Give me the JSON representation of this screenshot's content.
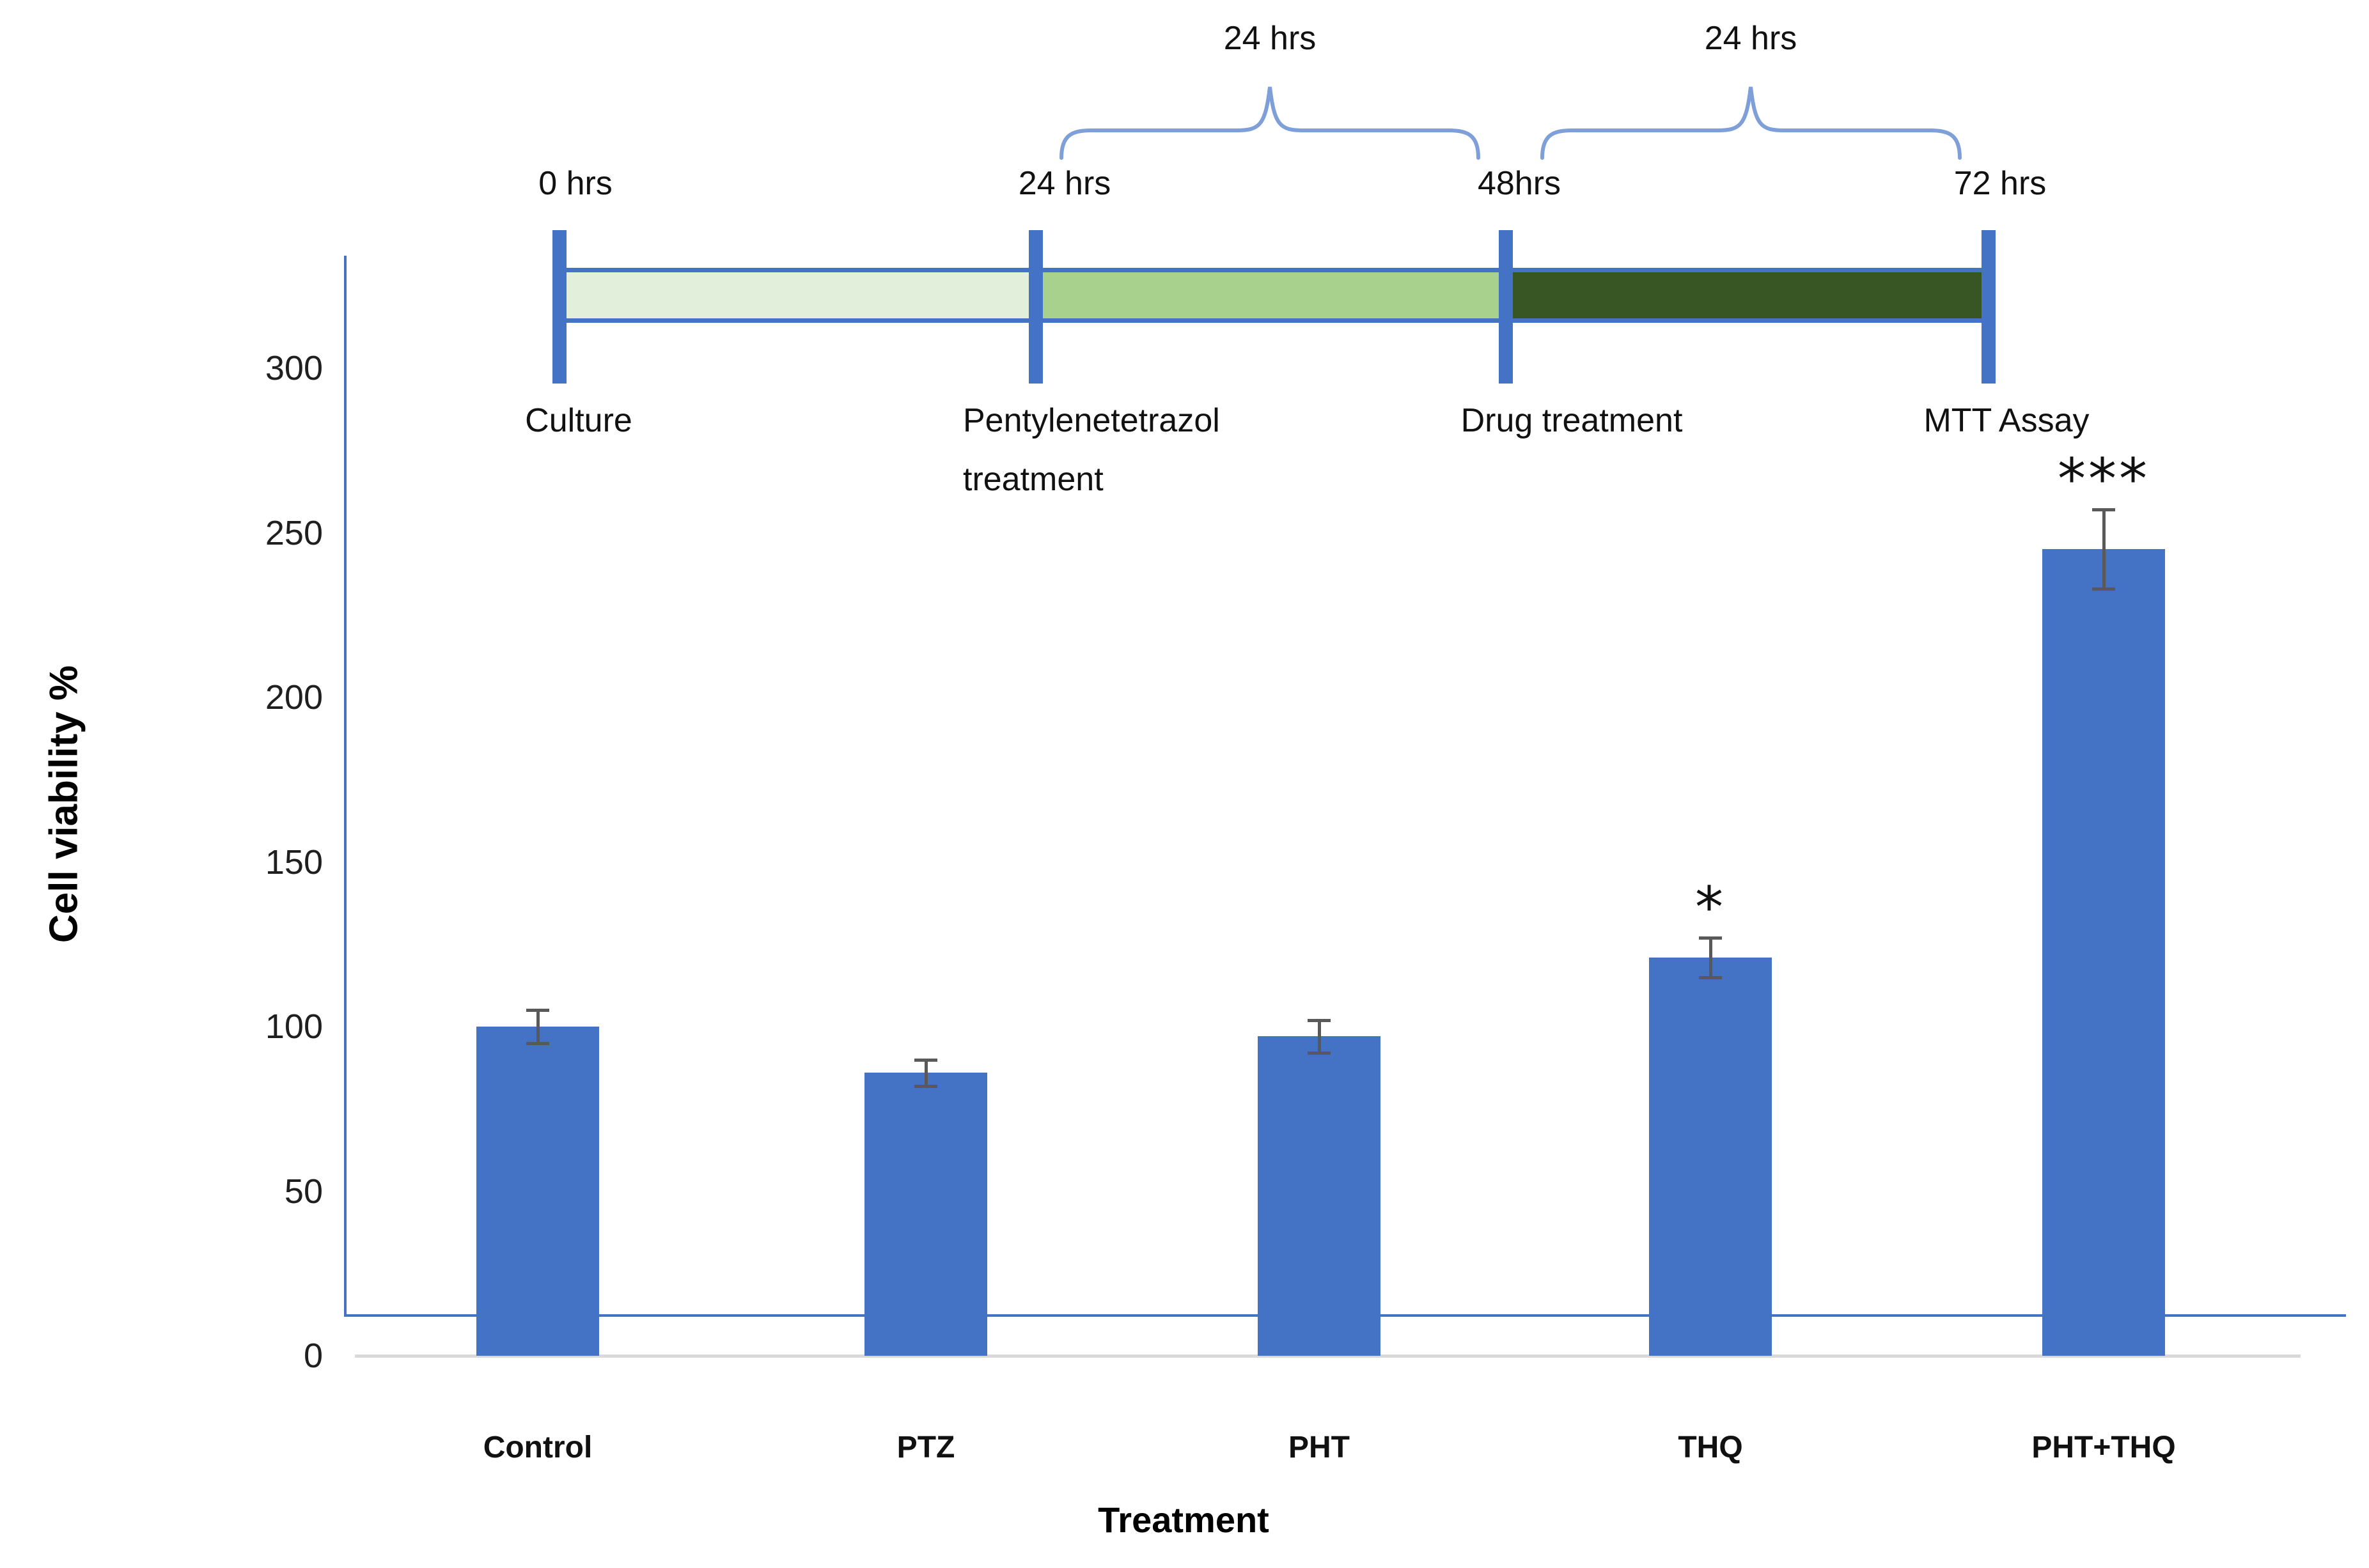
{
  "figure": {
    "background": "#ffffff",
    "timeline": {
      "time_labels": [
        "0 hrs",
        "24 hrs",
        "48hrs",
        "72 hrs"
      ],
      "event_labels": [
        "Culture",
        "Pentylenetetrazol treatment",
        "Drug treatment",
        "MTT Assay"
      ],
      "segments": [
        {
          "name": "culture-period",
          "color": "#E2EFDA"
        },
        {
          "name": "ptz-period",
          "color": "#A9D18E"
        },
        {
          "name": "drug-period",
          "color": "#375623"
        }
      ],
      "braces": [
        {
          "label": "24 hrs"
        },
        {
          "label": "24 hrs"
        }
      ],
      "tick_color": "#4472C4",
      "border_color": "#4472C4",
      "brace_color": "#7F9FD9"
    },
    "chart_data": {
      "type": "bar",
      "title": "",
      "categories": [
        "Control",
        "PTZ",
        "PHT",
        "THQ",
        "PHT+THQ"
      ],
      "values": [
        100,
        86,
        97,
        121,
        245
      ],
      "errors": [
        5,
        4,
        5,
        6,
        12
      ],
      "significance": [
        "",
        "",
        "",
        "*",
        "***"
      ],
      "xlabel": "Treatment",
      "ylabel": "Cell viability %",
      "yticks": [
        0,
        50,
        100,
        150,
        200,
        250,
        300
      ],
      "ylim": [
        0,
        325
      ],
      "grid": false,
      "legend_position": "none",
      "bar_color": "#4472C4",
      "error_color": "#595959",
      "axis_line_color": "#4472C4",
      "baseline_color": "#D9D9D9"
    }
  }
}
